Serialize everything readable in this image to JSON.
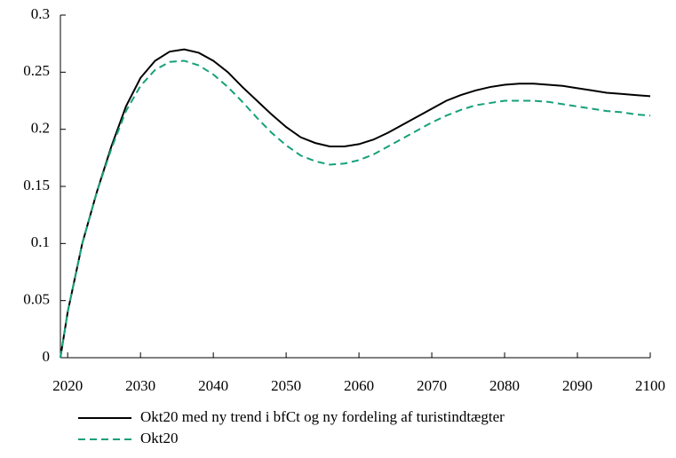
{
  "chart_data": {
    "type": "line",
    "x": [
      2019,
      2020,
      2022,
      2024,
      2026,
      2028,
      2030,
      2032,
      2034,
      2036,
      2038,
      2040,
      2042,
      2044,
      2046,
      2048,
      2050,
      2052,
      2054,
      2056,
      2058,
      2060,
      2062,
      2064,
      2066,
      2068,
      2070,
      2072,
      2074,
      2076,
      2078,
      2080,
      2082,
      2084,
      2086,
      2088,
      2090,
      2092,
      2094,
      2096,
      2098,
      2100
    ],
    "series": [
      {
        "name": "Okt20 med ny trend i bfCt og ny fordeling af turistindtægter",
        "color": "#000000",
        "dash": false,
        "values": [
          0,
          0.04,
          0.1,
          0.145,
          0.185,
          0.22,
          0.245,
          0.26,
          0.268,
          0.27,
          0.267,
          0.26,
          0.25,
          0.237,
          0.225,
          0.213,
          0.202,
          0.193,
          0.188,
          0.185,
          0.185,
          0.187,
          0.191,
          0.197,
          0.204,
          0.211,
          0.218,
          0.225,
          0.23,
          0.234,
          0.237,
          0.239,
          0.24,
          0.24,
          0.239,
          0.238,
          0.236,
          0.234,
          0.232,
          0.231,
          0.23,
          0.229
        ]
      },
      {
        "name": "Okt20",
        "color": "#16a07a",
        "dash": true,
        "values": [
          0,
          0.04,
          0.1,
          0.145,
          0.183,
          0.216,
          0.238,
          0.252,
          0.259,
          0.26,
          0.256,
          0.248,
          0.237,
          0.224,
          0.21,
          0.197,
          0.186,
          0.177,
          0.172,
          0.169,
          0.17,
          0.173,
          0.178,
          0.185,
          0.192,
          0.199,
          0.206,
          0.212,
          0.217,
          0.221,
          0.223,
          0.225,
          0.225,
          0.225,
          0.224,
          0.222,
          0.22,
          0.218,
          0.216,
          0.215,
          0.213,
          0.212
        ]
      }
    ],
    "xlim": [
      2019,
      2100
    ],
    "xticks": [
      2020,
      2030,
      2040,
      2050,
      2060,
      2070,
      2080,
      2090,
      2100
    ],
    "ylim": [
      0,
      0.3
    ],
    "yticks": [
      0,
      0.05,
      0.1,
      0.15,
      0.2,
      0.25,
      0.3
    ]
  }
}
